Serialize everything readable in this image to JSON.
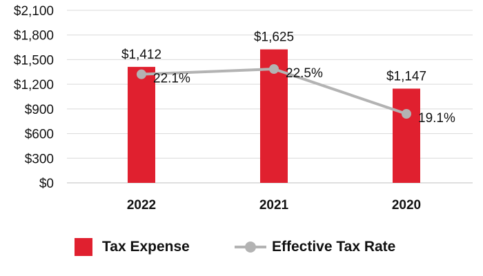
{
  "chart_data": {
    "type": "bar",
    "categories": [
      "2022",
      "2021",
      "2020"
    ],
    "series": [
      {
        "name": "Tax Expense",
        "kind": "bar",
        "values": [
          1412,
          1625,
          1147
        ],
        "labels": [
          "$1,412",
          "$1,625",
          "$1,147"
        ]
      },
      {
        "name": "Effective Tax Rate",
        "kind": "line",
        "values": [
          22.1,
          22.5,
          19.1
        ],
        "labels": [
          "22.1%",
          "22.5%",
          "19.1%"
        ]
      }
    ],
    "ylim": [
      0,
      2100
    ],
    "yticks": [
      0,
      300,
      600,
      900,
      1200,
      1500,
      1800,
      2100
    ],
    "ytick_labels": [
      "$0",
      "$300",
      "$600",
      "$900",
      "$1,200",
      "$1,500",
      "$1,800",
      "$2,100"
    ],
    "title": "",
    "xlabel": "",
    "ylabel": "",
    "grid": true,
    "legend_position": "bottom",
    "colors": {
      "bar": "#e0202f",
      "line": "#b3b3b3",
      "grid": "#d9d9d9",
      "text": "#111111"
    }
  },
  "legend": {
    "items": [
      {
        "label": "Tax Expense",
        "type": "bar-swatch"
      },
      {
        "label": "Effective Tax Rate",
        "type": "line-marker-swatch"
      }
    ]
  }
}
